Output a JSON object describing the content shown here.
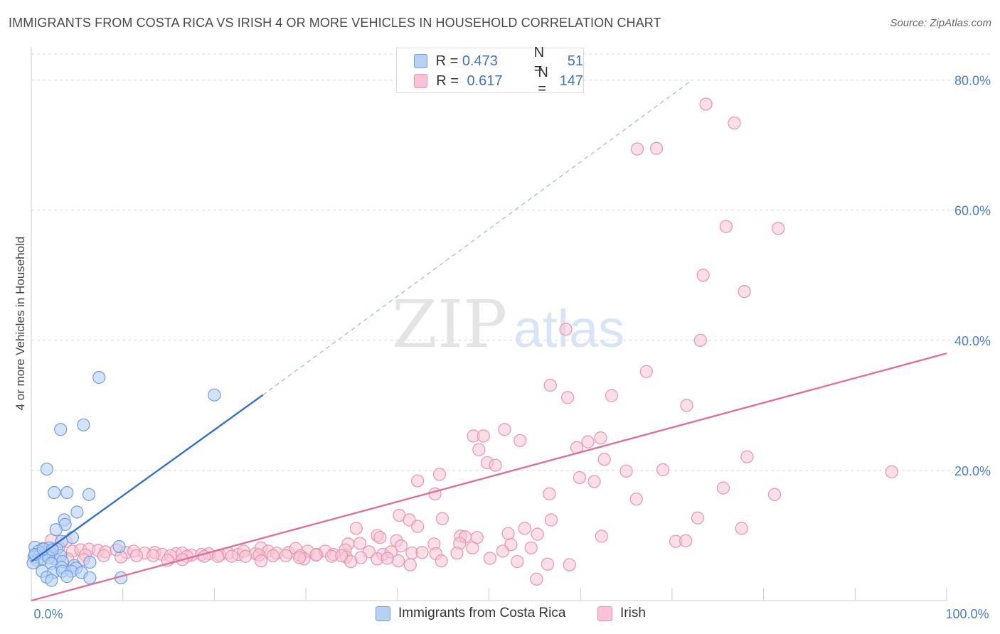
{
  "title": "IMMIGRANTS FROM COSTA RICA VS IRISH 4 OR MORE VEHICLES IN HOUSEHOLD CORRELATION CHART",
  "source": "Source: ZipAtlas.com",
  "watermark": {
    "zip": "ZIP",
    "atlas": "atlas"
  },
  "legend": {
    "rows": [
      {
        "r_label": "R = ",
        "r_value": "0.473",
        "n_label": "N = ",
        "n_value": "51"
      },
      {
        "r_label": "R = ",
        "r_value": "0.617",
        "n_label": "N = ",
        "n_value": "147"
      }
    ]
  },
  "bottom_legend": {
    "series1": "Immigrants from Costa Rica",
    "series2": "Irish"
  },
  "colors": {
    "blue_fill": "#b8d1f3",
    "blue_stroke": "#6f9fde",
    "blue_line": "#2f6fd0",
    "pink_fill": "#f8c4d4",
    "pink_stroke": "#e993b1",
    "pink_line": "#e0709a",
    "tick_label": "#4a7fcf",
    "grid": "#d8d8d8"
  },
  "chart_data": {
    "type": "scatter",
    "title": "IMMIGRANTS FROM COSTA RICA VS IRISH 4 OR MORE VEHICLES IN HOUSEHOLD CORRELATION CHART",
    "xlabel": "",
    "ylabel": "4 or more Vehicles in Household",
    "xlim": [
      0,
      100
    ],
    "ylim": [
      0,
      84
    ],
    "x_ticks": [
      0,
      100
    ],
    "x_tick_labels": [
      "0.0%",
      "100.0%"
    ],
    "y_ticks": [
      20,
      40,
      60,
      80
    ],
    "y_tick_labels": [
      "20.0%",
      "40.0%",
      "60.0%",
      "80.0%"
    ],
    "grid": true,
    "legend_position": "top-center",
    "series": [
      {
        "name": "Immigrants from Costa Rica",
        "color": "#6f9fde",
        "r": 0.473,
        "n": 51,
        "trendline": {
          "x": [
            0,
            25.3
          ],
          "y": [
            6.0,
            31.6
          ],
          "dashed_extension_to": [
            72.2,
            80
          ]
        },
        "points": [
          [
            7.4,
            34.3
          ],
          [
            20.0,
            31.6
          ],
          [
            5.7,
            27.0
          ],
          [
            3.2,
            26.3
          ],
          [
            1.7,
            20.2
          ],
          [
            2.5,
            16.6
          ],
          [
            3.9,
            16.6
          ],
          [
            6.3,
            16.3
          ],
          [
            5.0,
            13.6
          ],
          [
            3.6,
            12.4
          ],
          [
            3.7,
            11.7
          ],
          [
            2.7,
            10.9
          ],
          [
            4.5,
            9.7
          ],
          [
            9.6,
            8.3
          ],
          [
            3.3,
            9.1
          ],
          [
            0.4,
            8.2
          ],
          [
            1.3,
            8.0
          ],
          [
            2.0,
            8.1
          ],
          [
            2.8,
            7.9
          ],
          [
            0.8,
            7.6
          ],
          [
            1.5,
            7.4
          ],
          [
            2.1,
            7.2
          ],
          [
            0.5,
            7.0
          ],
          [
            1.0,
            7.3
          ],
          [
            1.7,
            7.0
          ],
          [
            0.3,
            6.7
          ],
          [
            2.6,
            6.4
          ],
          [
            3.2,
            6.9
          ],
          [
            0.6,
            6.2
          ],
          [
            1.2,
            6.4
          ],
          [
            1.9,
            6.6
          ],
          [
            0.2,
            5.8
          ],
          [
            3.4,
            6.0
          ],
          [
            2.2,
            5.7
          ],
          [
            6.4,
            5.9
          ],
          [
            3.3,
            5.1
          ],
          [
            4.7,
            5.4
          ],
          [
            4.9,
            5.0
          ],
          [
            1.2,
            4.5
          ],
          [
            2.4,
            4.3
          ],
          [
            3.4,
            4.5
          ],
          [
            4.4,
            4.5
          ],
          [
            5.5,
            4.3
          ],
          [
            1.7,
            3.6
          ],
          [
            6.4,
            3.5
          ],
          [
            9.8,
            3.5
          ],
          [
            3.9,
            3.7
          ],
          [
            2.2,
            3.1
          ],
          [
            0.4,
            7.1
          ],
          [
            1.3,
            7.9
          ],
          [
            2.3,
            7.8
          ]
        ]
      },
      {
        "name": "Irish",
        "color": "#e993b1",
        "r": 0.617,
        "n": 147,
        "trendline": {
          "x": [
            0,
            100
          ],
          "y": [
            0.0,
            38.0
          ]
        },
        "points": [
          [
            73.7,
            76.3
          ],
          [
            76.8,
            73.4
          ],
          [
            66.2,
            69.4
          ],
          [
            68.3,
            69.5
          ],
          [
            75.9,
            57.5
          ],
          [
            81.6,
            57.2
          ],
          [
            73.4,
            50.0
          ],
          [
            77.9,
            47.5
          ],
          [
            58.4,
            41.7
          ],
          [
            73.1,
            40.0
          ],
          [
            67.2,
            35.2
          ],
          [
            56.7,
            33.1
          ],
          [
            58.6,
            31.2
          ],
          [
            63.4,
            31.5
          ],
          [
            71.6,
            30.0
          ],
          [
            51.7,
            26.3
          ],
          [
            48.3,
            25.3
          ],
          [
            49.4,
            25.3
          ],
          [
            53.4,
            24.6
          ],
          [
            62.2,
            25.0
          ],
          [
            60.8,
            24.4
          ],
          [
            59.6,
            23.5
          ],
          [
            48.9,
            23.2
          ],
          [
            78.2,
            22.1
          ],
          [
            49.8,
            21.2
          ],
          [
            50.7,
            20.8
          ],
          [
            62.6,
            21.7
          ],
          [
            65.0,
            19.9
          ],
          [
            69.0,
            20.1
          ],
          [
            94.0,
            19.8
          ],
          [
            44.6,
            19.4
          ],
          [
            42.2,
            18.4
          ],
          [
            59.9,
            18.9
          ],
          [
            61.5,
            18.3
          ],
          [
            75.6,
            17.3
          ],
          [
            44.1,
            16.4
          ],
          [
            56.6,
            16.4
          ],
          [
            81.2,
            16.3
          ],
          [
            66.1,
            15.6
          ],
          [
            40.2,
            13.1
          ],
          [
            41.3,
            12.4
          ],
          [
            42.2,
            11.4
          ],
          [
            44.9,
            12.6
          ],
          [
            56.8,
            12.4
          ],
          [
            53.9,
            11.1
          ],
          [
            72.8,
            12.7
          ],
          [
            77.6,
            11.1
          ],
          [
            35.5,
            11.1
          ],
          [
            37.8,
            10.0
          ],
          [
            38.1,
            9.7
          ],
          [
            39.9,
            9.2
          ],
          [
            46.9,
            9.9
          ],
          [
            47.4,
            9.8
          ],
          [
            48.7,
            9.7
          ],
          [
            52.1,
            10.3
          ],
          [
            55.3,
            10.2
          ],
          [
            62.3,
            9.9
          ],
          [
            34.6,
            8.7
          ],
          [
            35.9,
            8.8
          ],
          [
            40.4,
            8.4
          ],
          [
            44.0,
            8.7
          ],
          [
            46.8,
            8.8
          ],
          [
            48.2,
            8.1
          ],
          [
            52.4,
            8.6
          ],
          [
            54.6,
            8.1
          ],
          [
            70.4,
            9.1
          ],
          [
            71.5,
            9.2
          ],
          [
            2.2,
            9.3
          ],
          [
            3.8,
            9.1
          ],
          [
            3.0,
            8.2
          ],
          [
            4.5,
            7.6
          ],
          [
            5.4,
            7.8
          ],
          [
            6.3,
            7.9
          ],
          [
            7.3,
            7.7
          ],
          [
            8.1,
            7.5
          ],
          [
            9.3,
            7.8
          ],
          [
            10.4,
            7.4
          ],
          [
            11.2,
            7.6
          ],
          [
            12.4,
            7.3
          ],
          [
            13.5,
            7.4
          ],
          [
            14.3,
            7.1
          ],
          [
            15.8,
            7.2
          ],
          [
            16.5,
            7.3
          ],
          [
            17.5,
            7.0
          ],
          [
            18.6,
            7.1
          ],
          [
            19.4,
            7.2
          ],
          [
            20.6,
            7.0
          ],
          [
            21.5,
            7.3
          ],
          [
            22.6,
            7.1
          ],
          [
            23.2,
            7.6
          ],
          [
            24.5,
            7.2
          ],
          [
            25.1,
            8.1
          ],
          [
            25.9,
            7.6
          ],
          [
            26.8,
            7.3
          ],
          [
            28.1,
            7.4
          ],
          [
            28.9,
            8.0
          ],
          [
            30.2,
            7.6
          ],
          [
            31.2,
            7.1
          ],
          [
            32.1,
            7.6
          ],
          [
            33.0,
            7.1
          ],
          [
            34.3,
            7.8
          ],
          [
            36.9,
            7.5
          ],
          [
            38.4,
            7.1
          ],
          [
            39.3,
            7.5
          ],
          [
            41.6,
            7.3
          ],
          [
            42.7,
            7.4
          ],
          [
            44.2,
            7.2
          ],
          [
            46.5,
            7.3
          ],
          [
            50.1,
            6.5
          ],
          [
            51.5,
            7.6
          ],
          [
            5.9,
            7.0
          ],
          [
            7.9,
            6.9
          ],
          [
            9.8,
            6.7
          ],
          [
            11.5,
            6.9
          ],
          [
            13.3,
            6.9
          ],
          [
            15.2,
            6.9
          ],
          [
            17.0,
            6.8
          ],
          [
            18.9,
            6.8
          ],
          [
            20.4,
            6.8
          ],
          [
            21.9,
            6.8
          ],
          [
            23.4,
            6.8
          ],
          [
            24.9,
            7.0
          ],
          [
            26.4,
            6.9
          ],
          [
            27.8,
            6.9
          ],
          [
            29.4,
            6.9
          ],
          [
            31.1,
            7.0
          ],
          [
            32.8,
            6.8
          ],
          [
            34.4,
            6.7
          ],
          [
            36.0,
            6.6
          ],
          [
            37.8,
            6.4
          ],
          [
            4.0,
            6.4
          ],
          [
            5.7,
            6.3
          ],
          [
            14.9,
            6.2
          ],
          [
            16.5,
            6.3
          ],
          [
            25.1,
            6.1
          ],
          [
            29.8,
            6.4
          ],
          [
            34.9,
            6.0
          ],
          [
            40.1,
            6.1
          ],
          [
            44.8,
            6.1
          ],
          [
            29.3,
            6.6
          ],
          [
            33.9,
            6.9
          ],
          [
            38.9,
            6.5
          ],
          [
            53.1,
            6.0
          ],
          [
            56.4,
            5.6
          ],
          [
            41.4,
            5.5
          ],
          [
            58.8,
            5.5
          ],
          [
            55.2,
            3.3
          ]
        ]
      }
    ]
  }
}
